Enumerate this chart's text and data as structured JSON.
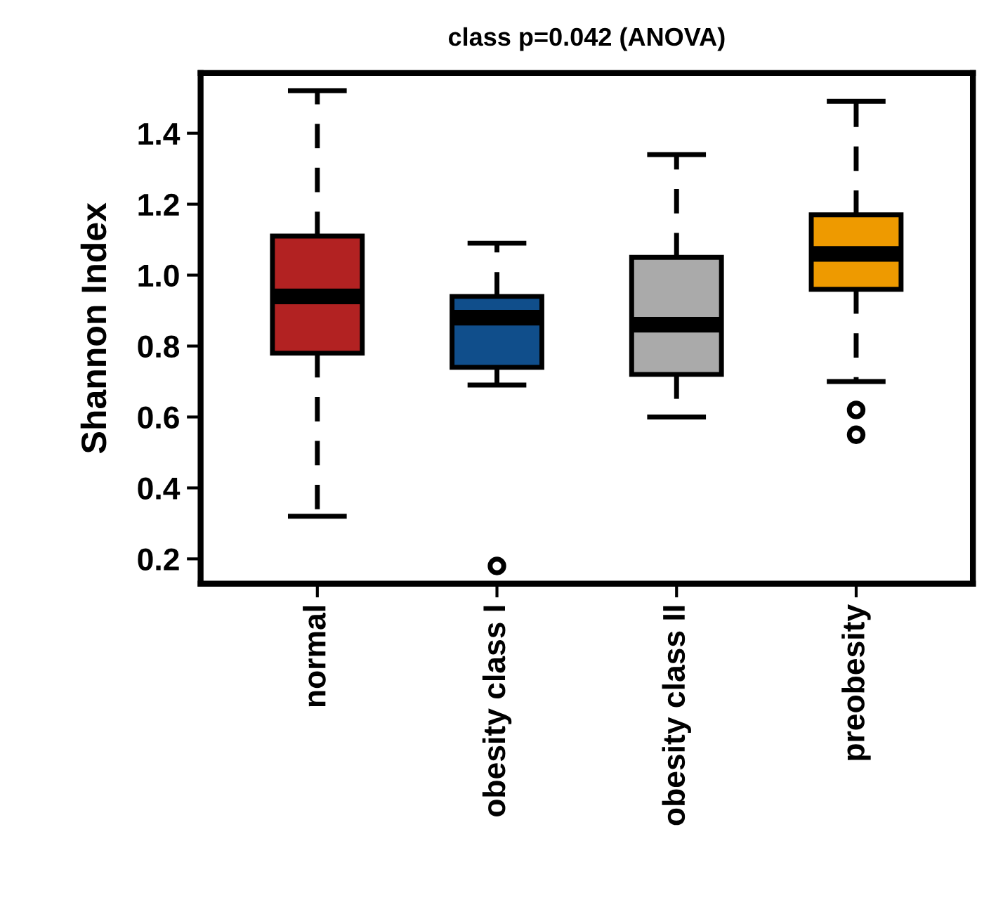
{
  "chart_data": {
    "type": "box",
    "title": "class p=0.042 (ANOVA)",
    "ylabel": "Shannon Index",
    "categories": [
      "normal",
      "obesity class I",
      "obesity class II",
      "preobesity"
    ],
    "colors": [
      "#b22222",
      "#104e8b",
      "#aaaaaa",
      "#ee9a00"
    ],
    "boxes": [
      {
        "low": 0.32,
        "q1": 0.78,
        "median": 0.94,
        "q3": 1.11,
        "high": 1.52
      },
      {
        "low": 0.69,
        "q1": 0.74,
        "median": 0.88,
        "q3": 0.94,
        "high": 1.09,
        "outliers": [
          0.18
        ]
      },
      {
        "low": 0.6,
        "q1": 0.72,
        "median": 0.86,
        "q3": 1.05,
        "high": 1.34
      },
      {
        "low": 0.7,
        "q1": 0.96,
        "median": 1.06,
        "q3": 1.17,
        "high": 1.49,
        "outliers": [
          0.62,
          0.55
        ]
      }
    ],
    "ylim": [
      0.13,
      1.57
    ],
    "yticks": [
      0.2,
      0.4,
      0.6,
      0.8,
      {
        "value": 1.0,
        "label": "1.0"
      },
      1.2,
      1.4
    ],
    "grid": false,
    "line_style": "dashed"
  }
}
